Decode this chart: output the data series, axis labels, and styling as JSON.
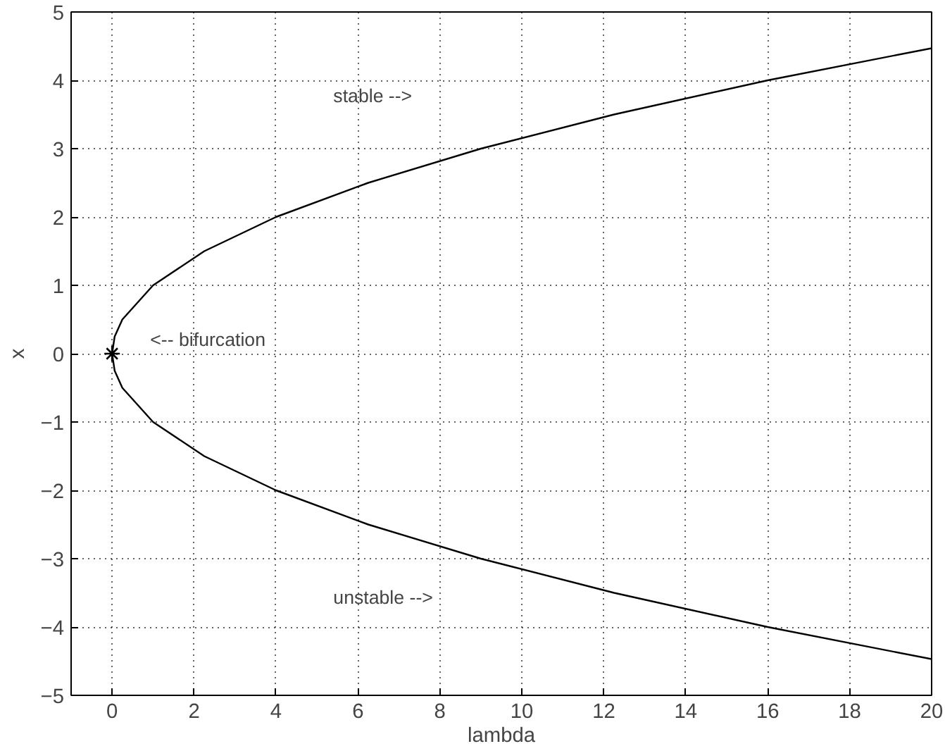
{
  "chart_data": {
    "type": "line",
    "xlabel": "lambda",
    "ylabel": "x",
    "xlim": [
      -1,
      20
    ],
    "xticks": [
      0,
      2,
      4,
      6,
      8,
      10,
      12,
      14,
      16,
      18,
      20
    ],
    "ylim": [
      -5,
      5
    ],
    "yticks": [
      -5,
      -4,
      -3,
      -2,
      -1,
      0,
      1,
      2,
      3,
      4,
      5
    ],
    "grid": true,
    "line_style": "solid",
    "series": [
      {
        "color": "#000000",
        "marker": "none",
        "x": [
          20,
          16,
          12.25,
          9,
          6.25,
          4,
          2.25,
          1,
          0.25,
          0.0625,
          0,
          0.0625,
          0.25,
          1,
          2.25,
          4,
          6.25,
          9,
          12.25,
          16,
          20
        ],
        "values": [
          -4.47,
          -4,
          -3.5,
          -3,
          -2.5,
          -2,
          -1.5,
          -1,
          -0.5,
          -0.25,
          0,
          0.25,
          0.5,
          1,
          1.5,
          2,
          2.5,
          3,
          3.5,
          4,
          4.47
        ]
      },
      {
        "type": "scatter",
        "color": "#000000",
        "marker": "cross",
        "x": [
          0
        ],
        "values": [
          0
        ]
      }
    ],
    "annotations": [
      "stable -->",
      "unstable -->",
      "<-- bifurcation"
    ]
  }
}
